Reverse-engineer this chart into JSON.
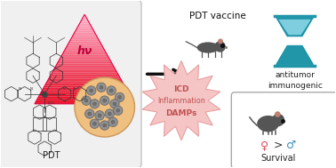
{
  "bg_color": "#ffffff",
  "left_box_color": "#f0f0f0",
  "left_box_edge": "#cccccc",
  "triangle_top_color": "#e8003d",
  "triangle_bottom_color": "#ffb3c6",
  "hv_text": "hν",
  "hv_color": "#c0003a",
  "pdt_label": "PDT",
  "pdt_label_color": "#222222",
  "arrow_color": "#111111",
  "pdt_vaccine_text": "PDT vaccine",
  "burst_color": "#f5c5c5",
  "burst_edge": "#e8a0a0",
  "icd_lines": [
    "ICD",
    "Inflammation",
    "DAMPs"
  ],
  "icd_color": "#c05050",
  "antitumor_lines": [
    "antitumor",
    "immunogenic"
  ],
  "antitumor_color": "#222222",
  "survival_text": "Survival",
  "survival_color": "#222222",
  "hourglass_color": "#2196a8",
  "petri_fill": "#f0c080",
  "petri_edge": "#c8965a",
  "cell_color": "#909090",
  "cell_edge": "#606060",
  "survival_box_edge": "#aaaaaa",
  "survival_box_fill": "#ffffff",
  "female_symbol_color": "#e05060",
  "male_symbol_color": "#4090c0",
  "mouse_body_color": "#555555",
  "mouse_ear_color": "#c08070"
}
